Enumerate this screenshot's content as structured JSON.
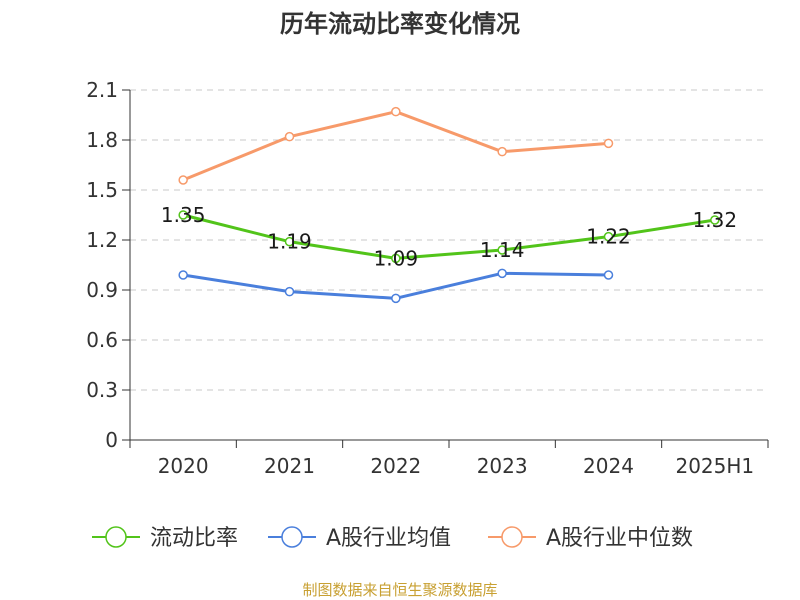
{
  "chart_data": {
    "type": "line",
    "title": "历年流动比率变化情况",
    "categories": [
      "2020",
      "2021",
      "2022",
      "2023",
      "2024",
      "2025H1"
    ],
    "y_ticks": [
      "0",
      "0.3",
      "0.6",
      "0.9",
      "1.2",
      "1.5",
      "1.8",
      "2.1"
    ],
    "ylim": [
      0,
      2.1
    ],
    "grid": true,
    "legend_position": "bottom",
    "series": [
      {
        "name": "流动比率",
        "color": "#52c41a",
        "values": [
          1.35,
          1.19,
          1.09,
          1.14,
          1.22,
          1.32
        ],
        "labels": [
          "1.35",
          "1.19",
          "1.09",
          "1.14",
          "1.22",
          "1.32"
        ]
      },
      {
        "name": "A股行业均值",
        "color": "#4a7fdc",
        "values": [
          0.99,
          0.89,
          0.85,
          1.0,
          0.99,
          null
        ]
      },
      {
        "name": "A股行业中位数",
        "color": "#f79a6a",
        "values": [
          1.56,
          1.82,
          1.97,
          1.73,
          1.78,
          null
        ]
      }
    ],
    "source": "制图数据来自恒生聚源数据库"
  }
}
